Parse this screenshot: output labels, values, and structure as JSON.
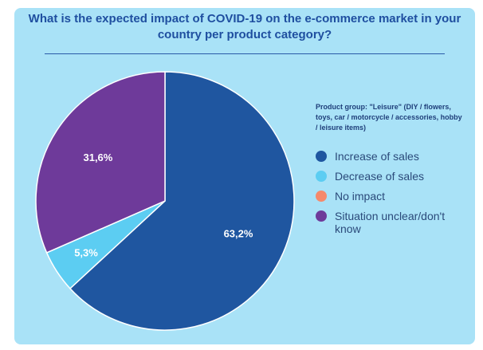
{
  "title": "What is the expected impact of COVID-19 on the e-commerce market in your country per product category?",
  "chart_data": {
    "type": "pie",
    "subtitle": "Product group: \"Leisure\" (DIY / flowers, toys, car / motorcycle / accessories, hobby / leisure items)",
    "slices": [
      {
        "label": "Increase of sales",
        "value": 63.2,
        "display": "63,2%",
        "color": "#1f56a0"
      },
      {
        "label": "Decrease of sales",
        "value": 5.3,
        "display": "5,3%",
        "color": "#5ccdf2"
      },
      {
        "label": "No impact",
        "value": 0,
        "display": "",
        "color": "#f6896b"
      },
      {
        "label": "Situation unclear/don't know",
        "value": 31.6,
        "display": "31,6%",
        "color": "#6e3a9a"
      }
    ],
    "legend_position": "right"
  }
}
